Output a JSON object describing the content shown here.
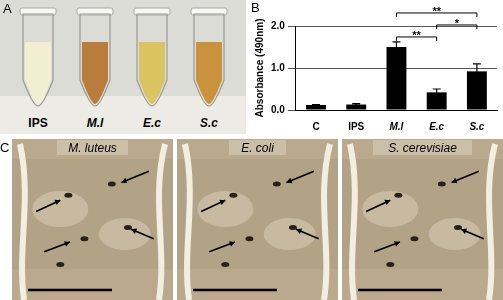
{
  "figure": {
    "panel_a": {
      "letter": "A",
      "tubes": [
        "IPS",
        "M.l",
        "E.c",
        "S.c"
      ]
    },
    "panel_b": {
      "letter": "B"
    },
    "panel_c": {
      "letter": "C",
      "photos": [
        "M. luteus",
        "E. coli",
        "S. cerevisiae"
      ]
    }
  },
  "chart_data": {
    "type": "bar",
    "categories": [
      "C",
      "IPS",
      "M.l",
      "E.c",
      "S.c"
    ],
    "values": [
      0.12,
      0.13,
      1.5,
      0.42,
      0.92
    ],
    "errors": [
      0.01,
      0.02,
      0.12,
      0.08,
      0.18
    ],
    "color": "#000000",
    "y_label": "Absorbance (490nm)",
    "ylim": [
      0,
      2
    ],
    "yticks": [
      {
        "value": 0,
        "label": "0.0"
      },
      {
        "value": 1,
        "label": "1.0"
      },
      {
        "value": 2,
        "label": "2.0"
      }
    ],
    "grid": true,
    "significance": [
      {
        "from": "M.l",
        "to": "E.c",
        "label": "**"
      },
      {
        "from": "M.l",
        "to": "S.c",
        "label": "**"
      },
      {
        "from": "E.c",
        "to": "S.c",
        "label": "*"
      }
    ]
  }
}
